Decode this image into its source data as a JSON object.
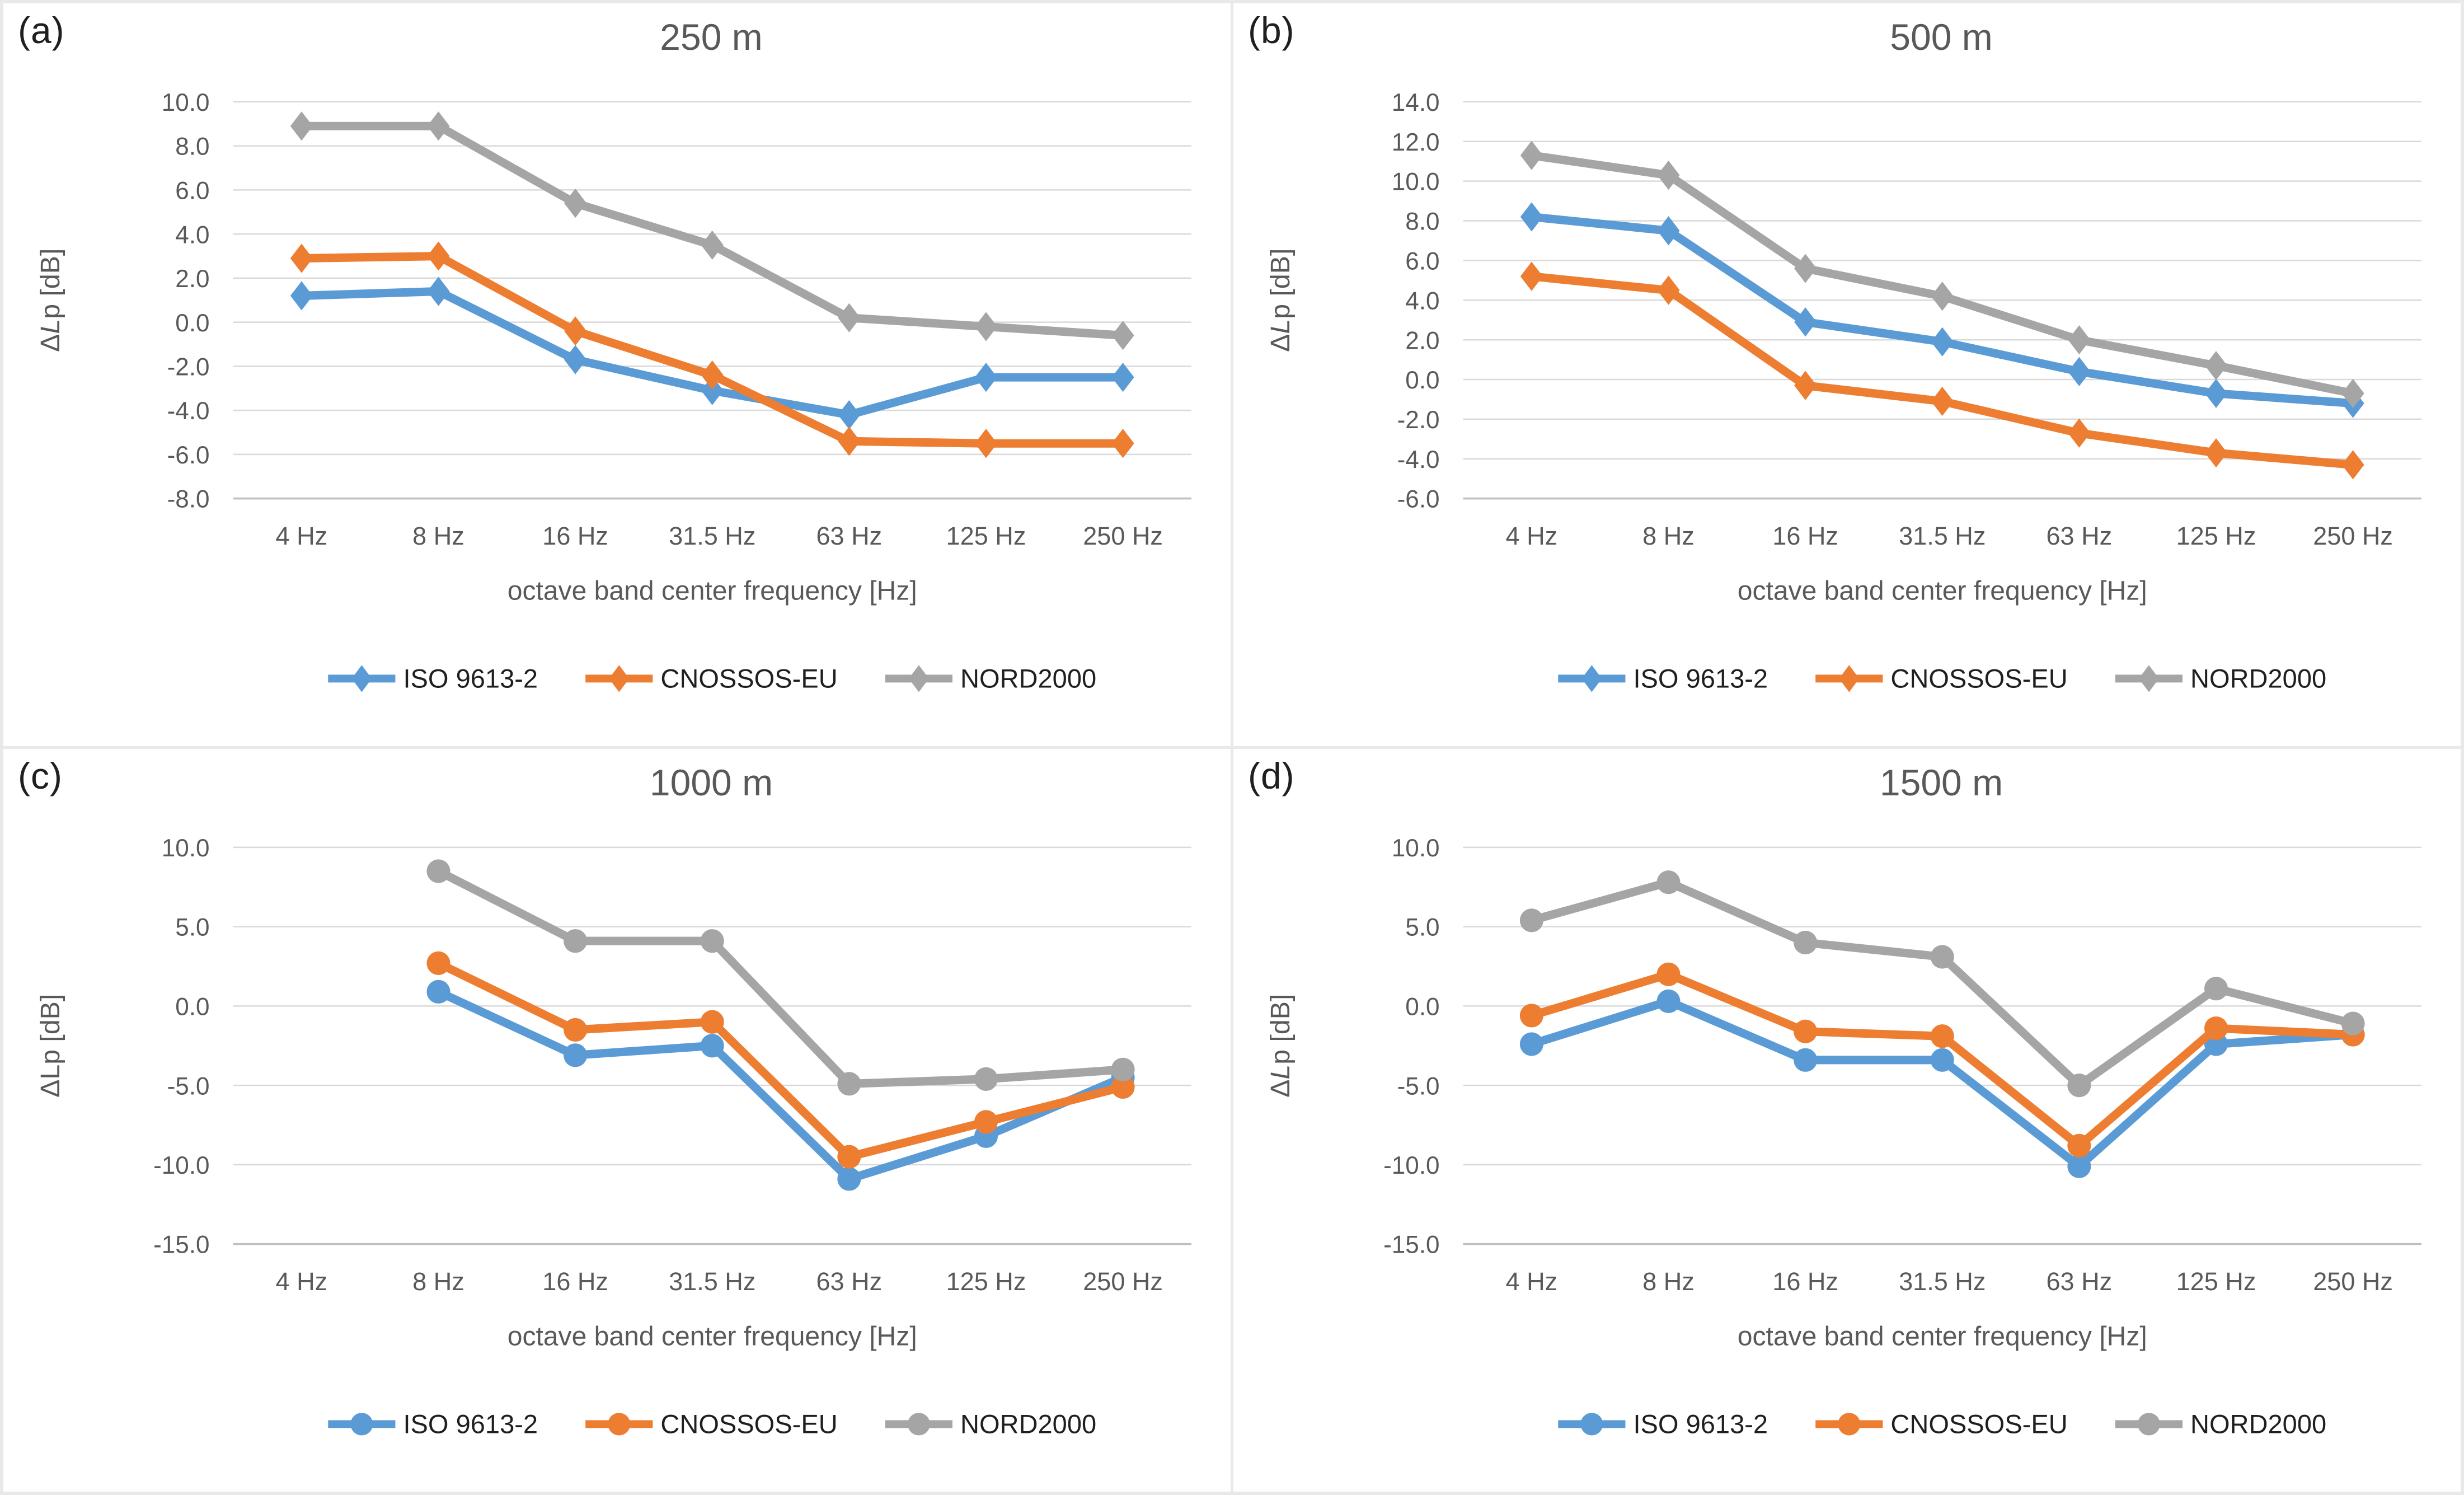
{
  "colors": {
    "iso": "#5B9BD5",
    "cnossos": "#ED7D31",
    "nord": "#A5A5A5",
    "title_text": "#595959",
    "axis_text": "#595959",
    "gridline": "#D9D9D9",
    "axis_line": "#BFBFBF",
    "panel_label_text": "#1F1F1F"
  },
  "legend": [
    "ISO 9613-2",
    "CNOSSOS-EU",
    "NORD2000"
  ],
  "xlabel": "octave band center frequency [Hz]",
  "chart_data": [
    {
      "panel_label": "(a)",
      "type": "line",
      "title": "250 m",
      "categories": [
        "4 Hz",
        "8 Hz",
        "16 Hz",
        "31.5 Hz",
        "63 Hz",
        "125 Hz",
        "250 Hz"
      ],
      "ylim": [
        -8,
        10
      ],
      "ytick_step": 2,
      "ytick_labels": [
        "10.0",
        "8.0",
        "6.0",
        "4.0",
        "2.0",
        "0.0",
        "-2.0",
        "-4.0",
        "-6.0",
        "-8.0"
      ],
      "ylabel": "ΔLp [dB]",
      "ylabel_italic_L": true,
      "grid": true,
      "legend_position": "bottom",
      "marker": "diamond",
      "series": [
        {
          "name": "ISO 9613-2",
          "color_key": "iso",
          "values": [
            1.2,
            1.4,
            -1.7,
            -3.1,
            -4.2,
            -2.5,
            -2.5
          ]
        },
        {
          "name": "CNOSSOS-EU",
          "color_key": "cnossos",
          "values": [
            2.9,
            3.0,
            -0.4,
            -2.4,
            -5.4,
            -5.5,
            -5.5
          ]
        },
        {
          "name": "NORD2000",
          "color_key": "nord",
          "values": [
            8.9,
            8.9,
            5.4,
            3.5,
            0.2,
            -0.2,
            -0.6
          ]
        }
      ]
    },
    {
      "panel_label": "(b)",
      "type": "line",
      "title": "500 m",
      "categories": [
        "4 Hz",
        "8 Hz",
        "16 Hz",
        "31.5 Hz",
        "63 Hz",
        "125 Hz",
        "250 Hz"
      ],
      "ylim": [
        -6,
        14
      ],
      "ytick_step": 2,
      "ytick_labels": [
        "14.0",
        "12.0",
        "10.0",
        "8.0",
        "6.0",
        "4.0",
        "2.0",
        "0.0",
        "-2.0",
        "-4.0",
        "-6.0"
      ],
      "ylabel": "ΔLp [dB]",
      "ylabel_italic_L": true,
      "grid": true,
      "legend_position": "bottom",
      "marker": "diamond",
      "series": [
        {
          "name": "ISO 9613-2",
          "color_key": "iso",
          "values": [
            8.2,
            7.5,
            2.9,
            1.9,
            0.4,
            -0.7,
            -1.2
          ]
        },
        {
          "name": "CNOSSOS-EU",
          "color_key": "cnossos",
          "values": [
            5.2,
            4.5,
            -0.3,
            -1.1,
            -2.7,
            -3.7,
            -4.3
          ]
        },
        {
          "name": "NORD2000",
          "color_key": "nord",
          "values": [
            11.3,
            10.3,
            5.6,
            4.2,
            2.0,
            0.7,
            -0.7
          ]
        }
      ]
    },
    {
      "panel_label": "(c)",
      "type": "line",
      "title": "1000 m",
      "categories": [
        "4 Hz",
        "8 Hz",
        "16 Hz",
        "31.5 Hz",
        "63 Hz",
        "125 Hz",
        "250 Hz"
      ],
      "ylim": [
        -15,
        10
      ],
      "ytick_step": 5,
      "ytick_labels": [
        "10.0",
        "5.0",
        "0.0",
        "-5.0",
        "-10.0",
        "-15.0"
      ],
      "ylabel": "ΔLp [dB]",
      "ylabel_italic_L": false,
      "grid": true,
      "legend_position": "bottom",
      "marker": "circle",
      "series": [
        {
          "name": "ISO 9613-2",
          "color_key": "iso",
          "values": [
            null,
            0.9,
            -3.1,
            -2.5,
            -10.9,
            -8.2,
            -4.5
          ]
        },
        {
          "name": "CNOSSOS-EU",
          "color_key": "cnossos",
          "values": [
            null,
            2.7,
            -1.5,
            -1.0,
            -9.5,
            -7.3,
            -5.1
          ]
        },
        {
          "name": "NORD2000",
          "color_key": "nord",
          "values": [
            null,
            8.5,
            4.1,
            4.1,
            -4.9,
            -4.6,
            -4.0
          ]
        }
      ]
    },
    {
      "panel_label": "(d)",
      "type": "line",
      "title": "1500 m",
      "categories": [
        "4 Hz",
        "8 Hz",
        "16 Hz",
        "31.5 Hz",
        "63 Hz",
        "125 Hz",
        "250 Hz"
      ],
      "ylim": [
        -15,
        10
      ],
      "ytick_step": 5,
      "ytick_labels": [
        "10.0",
        "5.0",
        "0.0",
        "-5.0",
        "-10.0",
        "-15.0"
      ],
      "ylabel": "ΔLp [dB]",
      "ylabel_italic_L": true,
      "grid": true,
      "legend_position": "bottom",
      "marker": "circle",
      "series": [
        {
          "name": "ISO 9613-2",
          "color_key": "iso",
          "values": [
            -2.4,
            0.3,
            -3.4,
            -3.4,
            -10.1,
            -2.4,
            -1.8
          ]
        },
        {
          "name": "CNOSSOS-EU",
          "color_key": "cnossos",
          "values": [
            -0.6,
            2.0,
            -1.6,
            -1.9,
            -8.8,
            -1.4,
            -1.8
          ]
        },
        {
          "name": "NORD2000",
          "color_key": "nord",
          "values": [
            5.4,
            7.8,
            4.0,
            3.1,
            -5.0,
            1.1,
            -1.1
          ]
        }
      ]
    }
  ]
}
